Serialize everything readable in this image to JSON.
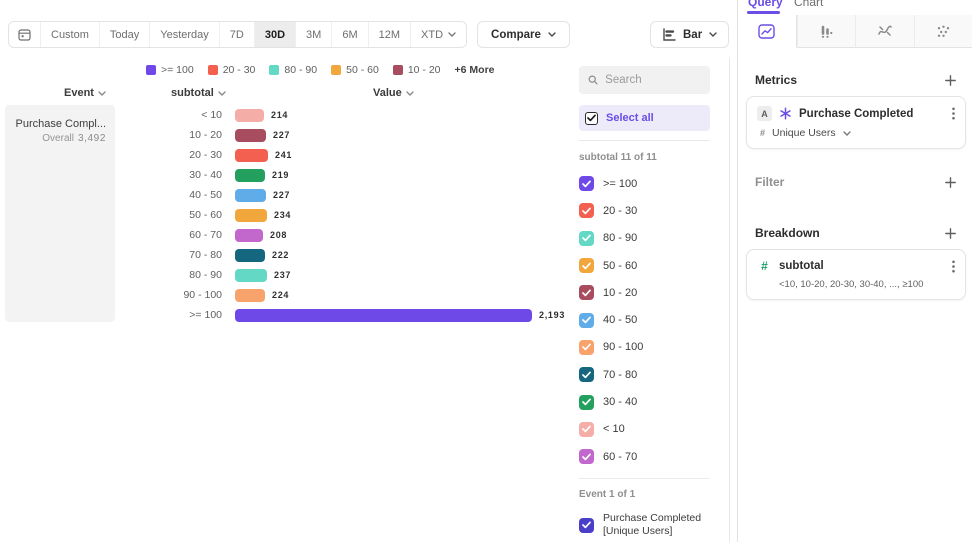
{
  "toolbar": {
    "date_buttons": [
      {
        "label": "Custom"
      },
      {
        "label": "Today"
      },
      {
        "label": "Yesterday"
      },
      {
        "label": "7D"
      },
      {
        "label": "30D",
        "active": true
      },
      {
        "label": "3M"
      },
      {
        "label": "6M"
      },
      {
        "label": "12M"
      },
      {
        "label": "XTD",
        "chevron": true
      }
    ],
    "compare_label": "Compare",
    "chart_type_label": "Bar"
  },
  "legend": {
    "items": [
      {
        "label": ">= 100",
        "color": "#6F49E8"
      },
      {
        "label": "20 - 30",
        "color": "#F4604F"
      },
      {
        "label": "80 - 90",
        "color": "#62D8C5"
      },
      {
        "label": "50 - 60",
        "color": "#F2A73D"
      },
      {
        "label": "10 - 20",
        "color": "#A84C5F"
      }
    ],
    "more_label": "+6 More"
  },
  "chart": {
    "event_column_label": "Event",
    "segment_column_label": "subtotal",
    "value_column_label": "Value",
    "event_card": {
      "name": "Purchase Compl...",
      "overall_label": "Overall",
      "overall_value": "3,492"
    }
  },
  "chart_data": {
    "type": "bar",
    "orientation": "horizontal",
    "series_name": "Purchase Completed [Unique Users]",
    "breakdown_property": "subtotal",
    "categories": [
      "< 10",
      "10 - 20",
      "20 - 30",
      "30 - 40",
      "40 - 50",
      "50 - 60",
      "60 - 70",
      "70 - 80",
      "80 - 90",
      "90 - 100",
      ">= 100"
    ],
    "values": [
      214,
      227,
      241,
      219,
      227,
      234,
      208,
      222,
      237,
      224,
      2193
    ],
    "display_values": [
      "214",
      "227",
      "241",
      "219",
      "227",
      "234",
      "208",
      "222",
      "237",
      "224",
      "2,193"
    ],
    "colors": [
      "#F5ADA8",
      "#A84C5F",
      "#F4604F",
      "#24A05E",
      "#5FACE8",
      "#F2A73D",
      "#C268CC",
      "#15677F",
      "#62D8C5",
      "#F8A26C",
      "#6F49E8"
    ],
    "overall_total": 3492,
    "legend_position": "top"
  },
  "filter_panel": {
    "search_placeholder": "Search",
    "select_all_label": "Select all",
    "group_label": "subtotal 11 of 11",
    "items": [
      {
        "label": ">= 100",
        "color": "#6F49E8",
        "checked": true
      },
      {
        "label": "20 - 30",
        "color": "#F4604F",
        "checked": true
      },
      {
        "label": "80 - 90",
        "color": "#62D8C5",
        "checked": true
      },
      {
        "label": "50 - 60",
        "color": "#F2A73D",
        "checked": true
      },
      {
        "label": "10 - 20",
        "color": "#A84C5F",
        "checked": true
      },
      {
        "label": "40 - 50",
        "color": "#5FACE8",
        "checked": true
      },
      {
        "label": "90 - 100",
        "color": "#F8A26C",
        "checked": true
      },
      {
        "label": "70 - 80",
        "color": "#15677F",
        "checked": true
      },
      {
        "label": "30 - 40",
        "color": "#24A05E",
        "checked": true
      },
      {
        "label": "< 10",
        "color": "#F5ADA8",
        "checked": true
      },
      {
        "label": "60 - 70",
        "color": "#C268CC",
        "checked": true
      }
    ],
    "event_group_label": "Event 1 of 1",
    "event_item": {
      "label": "Purchase Completed [Unique Users]",
      "color": "#4A3FC8",
      "checked": true
    }
  },
  "query_panel": {
    "tabs": [
      {
        "label": "Query",
        "active": true
      },
      {
        "label": "Chart",
        "active": false
      }
    ],
    "icon_tabs": [
      "line-chart",
      "bar-chart",
      "wave-chart",
      "dot-grid"
    ],
    "active_icon_tab": "line-chart",
    "metrics_title": "Metrics",
    "metric_card": {
      "badge": "A",
      "icon": "sparkle-icon",
      "name": "Purchase Completed",
      "measure": "Unique Users"
    },
    "filter_title": "Filter",
    "breakdown_title": "Breakdown",
    "breakdown_card": {
      "icon": "hash-icon",
      "icon_color": "#1F9D6B",
      "name": "subtotal",
      "detail": "<10, 10-20, 20-30, 30-40, ..., ≥100"
    }
  },
  "colors": {
    "accent": "#6B4EE6"
  }
}
